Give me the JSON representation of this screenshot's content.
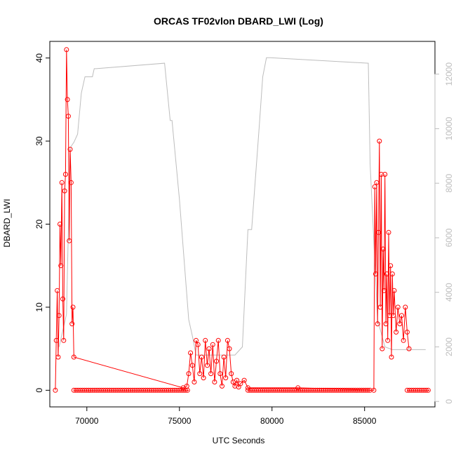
{
  "chart_data": {
    "type": "line",
    "title": "ORCAS TF02vlon DBARD_LWI (Log)",
    "xlabel": "UTC Seconds",
    "ylabel": "DBARD_LWI",
    "xlim": [
      68000,
      88800
    ],
    "ylim": [
      -2,
      42
    ],
    "y2lim": [
      -200,
      13200
    ],
    "x_ticks": [
      70000,
      75000,
      80000,
      85000
    ],
    "y_ticks": [
      0,
      10,
      20,
      30,
      40
    ],
    "y2_ticks": [
      0,
      2000,
      4000,
      6000,
      8000,
      10000,
      12000
    ],
    "colors": {
      "primary": "#ff0000",
      "secondary": "#bdbdbd",
      "axis": "#000000"
    },
    "series": [
      {
        "axis": "right",
        "style": "line",
        "x": [
          68500,
          68700,
          68900,
          69100,
          69300,
          69500,
          69700,
          69900,
          70100,
          70300,
          70400,
          70500,
          74200,
          74500,
          74600,
          75000,
          75500,
          75700,
          75900,
          76600,
          77200,
          77700,
          78000,
          78400,
          78700,
          78900,
          79300,
          79500,
          79700,
          79900,
          85200,
          85300,
          85700,
          86100,
          86500,
          86900,
          87300,
          88300
        ],
        "values": [
          2000,
          2600,
          3200,
          9300,
          9500,
          9800,
          11300,
          11900,
          11900,
          11900,
          12200,
          12200,
          12400,
          10300,
          10300,
          7400,
          3000,
          2400,
          1700,
          1700,
          1700,
          1700,
          1700,
          2000,
          6300,
          6300,
          10000,
          11900,
          12600,
          12600,
          12400,
          8700,
          3000,
          2000,
          1900,
          1900,
          1900,
          1900
        ]
      },
      {
        "axis": "left",
        "style": "line+points",
        "x": [
          68300,
          68350,
          68400,
          68450,
          68500,
          68550,
          68600,
          68650,
          68700,
          68750,
          68800,
          68850,
          68900,
          68950,
          69000,
          69050,
          69100,
          69150,
          69200,
          69250,
          69300,
          75200,
          75400,
          75500,
          75600,
          75700,
          75800,
          75900,
          76000,
          76100,
          76200,
          76300,
          76400,
          76500,
          76600,
          76700,
          76800,
          76900,
          77000,
          77100,
          77200,
          77300,
          77400,
          77500,
          77600,
          77700,
          77800,
          77900,
          78000,
          78100,
          78200,
          78300,
          78500,
          78700,
          81400,
          85500,
          85550,
          85600,
          85650,
          85700,
          85750,
          85800,
          85850,
          85900,
          85950,
          86000,
          86050,
          86100,
          86150,
          86200,
          86250,
          86300,
          86350,
          86400,
          86450,
          86500,
          86550,
          86600,
          86700,
          86800,
          86900,
          87000,
          87100,
          87200,
          87300,
          87400
        ],
        "values": [
          0,
          6,
          12,
          4,
          9,
          20,
          15,
          25,
          11,
          6,
          24,
          26,
          41,
          35,
          33,
          18,
          29,
          25,
          8,
          10,
          4,
          0.3,
          0.5,
          2,
          4.5,
          3,
          1,
          6,
          5.5,
          2,
          4,
          1.5,
          6,
          3,
          5,
          2,
          5.5,
          1,
          3.5,
          6,
          2,
          0.5,
          4,
          1.5,
          6,
          5,
          2,
          1,
          0.5,
          1.2,
          0.4,
          0.8,
          1.2,
          0.3,
          0.3,
          0,
          24.5,
          14,
          25,
          8,
          19,
          30,
          10,
          26,
          5,
          17,
          12,
          26,
          8,
          14,
          6,
          19,
          9,
          15,
          4,
          14,
          9,
          12,
          7,
          10,
          8,
          9,
          6,
          10,
          7,
          5
        ]
      },
      {
        "axis": "left",
        "style": "points-flat",
        "x_ranges": [
          [
            69300,
            75500
          ],
          [
            78700,
            85400
          ],
          [
            87300,
            88500
          ]
        ],
        "values": [
          0
        ]
      }
    ],
    "grid": false,
    "legend": "none"
  }
}
